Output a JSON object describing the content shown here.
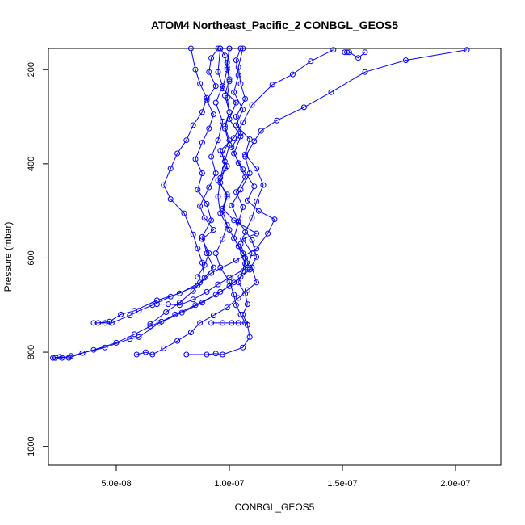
{
  "chart_data": {
    "type": "line",
    "title": "ATOM4 Northeast_Pacific_2 CONBGL_GEOS5",
    "xlabel": "CONBGL_GEOS5",
    "ylabel": "Pressure (mbar)",
    "xlim": [
      2e-08,
      2.2e-07
    ],
    "ylim": [
      1040,
      155
    ],
    "y_reversed": true,
    "grid": false,
    "line_color": "#0000ff",
    "marker": "open-circle",
    "x_ticks": [
      {
        "value": 5e-08,
        "label": "5.0e-08"
      },
      {
        "value": 1e-07,
        "label": "1.0e-07"
      },
      {
        "value": 1.5e-07,
        "label": "1.5e-07"
      },
      {
        "value": 2e-07,
        "label": "2.0e-07"
      }
    ],
    "y_ticks": [
      {
        "value": 200,
        "label": "200"
      },
      {
        "value": 400,
        "label": "400"
      },
      {
        "value": 600,
        "label": "600"
      },
      {
        "value": 800,
        "label": "800"
      },
      {
        "value": 1000,
        "label": "1000"
      }
    ],
    "series": [
      {
        "points": [
          [
            2.3e-08,
            812
          ],
          [
            2.6e-08,
            812
          ],
          [
            3e-08,
            808
          ],
          [
            4e-08,
            795
          ],
          [
            5e-08,
            780
          ],
          [
            5.8e-08,
            762
          ],
          [
            6.5e-08,
            745
          ],
          [
            7e-08,
            735
          ],
          [
            7.6e-08,
            720
          ],
          [
            8.5e-08,
            700
          ],
          [
            9.4e-08,
            678
          ],
          [
            1e-07,
            660
          ],
          [
            1.05e-07,
            640
          ],
          [
            1.07e-07,
            612
          ],
          [
            1.04e-07,
            575
          ],
          [
            1e-07,
            540
          ],
          [
            9.6e-08,
            505
          ],
          [
            9.5e-08,
            470
          ],
          [
            9.6e-08,
            430
          ],
          [
            9.8e-08,
            395
          ],
          [
            1e-07,
            360
          ],
          [
            9.8e-08,
            325
          ],
          [
            1e-07,
            290
          ],
          [
            9.8e-08,
            255
          ],
          [
            1e-07,
            220
          ],
          [
            9.9e-08,
            185
          ],
          [
            1e-07,
            155
          ]
        ]
      },
      {
        "points": [
          [
            2.2e-08,
            812
          ],
          [
            2.5e-08,
            810
          ],
          [
            2.9e-08,
            812
          ],
          [
            3.5e-08,
            802
          ],
          [
            4.5e-08,
            790
          ],
          [
            5.6e-08,
            772
          ],
          [
            6e-08,
            768
          ],
          [
            6.9e-08,
            738
          ],
          [
            7.9e-08,
            716
          ],
          [
            8.8e-08,
            695
          ],
          [
            9.6e-08,
            672
          ],
          [
            1.02e-07,
            652
          ],
          [
            1.09e-07,
            625
          ],
          [
            1.12e-07,
            598
          ],
          [
            1.1e-07,
            562
          ],
          [
            1.04e-07,
            522
          ],
          [
            1.01e-07,
            488
          ],
          [
            1.05e-07,
            455
          ],
          [
            1.09e-07,
            420
          ],
          [
            1.07e-07,
            385
          ],
          [
            1.11e-07,
            352
          ],
          [
            1.14e-07,
            330
          ],
          [
            1.21e-07,
            308
          ],
          [
            1.33e-07,
            280
          ],
          [
            1.45e-07,
            248
          ],
          [
            1.6e-07,
            205
          ],
          [
            1.78e-07,
            180
          ],
          [
            2.05e-07,
            158
          ]
        ]
      },
      {
        "points": [
          [
            4e-08,
            738
          ],
          [
            4.5e-08,
            738
          ],
          [
            4.8e-08,
            738
          ],
          [
            5.6e-08,
            722
          ],
          [
            6e-08,
            712
          ],
          [
            6.6e-08,
            700
          ],
          [
            7.4e-08,
            682
          ],
          [
            8.6e-08,
            658
          ],
          [
            9.2e-08,
            632
          ],
          [
            1.03e-07,
            605
          ],
          [
            1.12e-07,
            580
          ],
          [
            1.17e-07,
            548
          ],
          [
            1.2e-07,
            518
          ],
          [
            1.13e-07,
            500
          ],
          [
            1.08e-07,
            478
          ],
          [
            1.11e-07,
            448
          ],
          [
            1.06e-07,
            412
          ],
          [
            1.02e-07,
            378
          ],
          [
            1.05e-07,
            342
          ],
          [
            1e-07,
            305
          ],
          [
            1.03e-07,
            270
          ],
          [
            9.7e-08,
            240
          ],
          [
            9.9e-08,
            200
          ],
          [
            9.8e-08,
            170
          ],
          [
            9.6e-08,
            155
          ]
        ]
      },
      {
        "points": [
          [
            4.2e-08,
            738
          ],
          [
            4.7e-08,
            735
          ],
          [
            5.2e-08,
            720
          ],
          [
            5.8e-08,
            712
          ],
          [
            6.8e-08,
            690
          ],
          [
            7.8e-08,
            675
          ],
          [
            8.7e-08,
            652
          ],
          [
            9.3e-08,
            620
          ],
          [
            9e-08,
            590
          ],
          [
            8.8e-08,
            555
          ],
          [
            9.2e-08,
            520
          ],
          [
            9e-08,
            485
          ],
          [
            8.6e-08,
            455
          ],
          [
            8.8e-08,
            420
          ],
          [
            8.5e-08,
            390
          ],
          [
            8.8e-08,
            355
          ],
          [
            9.1e-08,
            325
          ],
          [
            9.3e-08,
            295
          ],
          [
            9e-08,
            265
          ],
          [
            9.4e-08,
            235
          ],
          [
            9.1e-08,
            205
          ],
          [
            9.2e-08,
            175
          ],
          [
            9.5e-08,
            155
          ]
        ]
      },
      {
        "points": [
          [
            5.9e-08,
            805
          ],
          [
            6.3e-08,
            800
          ],
          [
            6.6e-08,
            805
          ],
          [
            7.1e-08,
            792
          ],
          [
            7.7e-08,
            776
          ],
          [
            8.3e-08,
            758
          ],
          [
            8.7e-08,
            738
          ],
          [
            9.3e-08,
            722
          ],
          [
            9.9e-08,
            705
          ],
          [
            1.04e-07,
            685
          ],
          [
            1.08e-07,
            668
          ],
          [
            1.12e-07,
            652
          ],
          [
            1.1e-07,
            620
          ],
          [
            1.06e-07,
            590
          ],
          [
            1.02e-07,
            558
          ],
          [
            1.04e-07,
            525
          ],
          [
            1.06e-07,
            492
          ],
          [
            1.03e-07,
            460
          ],
          [
            1.07e-07,
            428
          ],
          [
            1.04e-07,
            398
          ],
          [
            1.01e-07,
            365
          ],
          [
            1.05e-07,
            335
          ],
          [
            1.03e-07,
            300
          ],
          [
            1.07e-07,
            262
          ],
          [
            1.05e-07,
            230
          ],
          [
            1.04e-07,
            195
          ],
          [
            1.06e-07,
            155
          ]
        ]
      },
      {
        "points": [
          [
            8.1e-08,
            805
          ],
          [
            9e-08,
            805
          ],
          [
            9.4e-08,
            803
          ],
          [
            9.7e-08,
            805
          ],
          [
            1.06e-07,
            790
          ],
          [
            1.09e-07,
            768
          ],
          [
            1.08e-07,
            742
          ],
          [
            1.06e-07,
            720
          ],
          [
            1.08e-07,
            698
          ],
          [
            1.07e-07,
            676
          ],
          [
            1.04e-07,
            652
          ],
          [
            1.06e-07,
            628
          ],
          [
            1.07e-07,
            600
          ],
          [
            1.05e-07,
            570
          ],
          [
            1.07e-07,
            545
          ],
          [
            1.1e-07,
            515
          ],
          [
            1.12e-07,
            480
          ],
          [
            1.15e-07,
            445
          ],
          [
            1.12e-07,
            410
          ],
          [
            1.07e-07,
            380
          ],
          [
            1.09e-07,
            348
          ],
          [
            1.03e-07,
            318
          ],
          [
            1.06e-07,
            285
          ],
          [
            1.02e-07,
            248
          ],
          [
            1.04e-07,
            212
          ],
          [
            1.03e-07,
            180
          ],
          [
            1.05e-07,
            155
          ]
        ]
      },
      {
        "points": [
          [
            9.2e-08,
            738
          ],
          [
            9.7e-08,
            738
          ],
          [
            1.01e-07,
            738
          ],
          [
            1.04e-07,
            738
          ],
          [
            1.07e-07,
            738
          ],
          [
            1.05e-07,
            720
          ],
          [
            1.03e-07,
            700
          ],
          [
            1.02e-07,
            678
          ],
          [
            1e-07,
            650
          ],
          [
            9.6e-08,
            620
          ],
          [
            9.4e-08,
            590
          ],
          [
            9.7e-08,
            560
          ],
          [
            9.9e-08,
            530
          ],
          [
            9.7e-08,
            500
          ],
          [
            9.9e-08,
            470
          ],
          [
            9.6e-08,
            440
          ],
          [
            9.8e-08,
            410
          ],
          [
            9.7e-08,
            380
          ],
          [
            1e-07,
            350
          ],
          [
            9.8e-08,
            320
          ],
          [
            1e-07,
            290
          ],
          [
            9.9e-08,
            260
          ],
          [
            1e-07,
            225
          ],
          [
            9.9e-08,
            195
          ],
          [
            1e-07,
            155
          ]
        ]
      },
      {
        "points": [
          [
            6.5e-08,
            740
          ],
          [
            7.2e-08,
            715
          ],
          [
            7.8e-08,
            695
          ],
          [
            8.4e-08,
            670
          ],
          [
            8.9e-08,
            642
          ],
          [
            8.8e-08,
            610
          ],
          [
            8.6e-08,
            580
          ],
          [
            8.4e-08,
            550
          ],
          [
            8e-08,
            505
          ],
          [
            7.4e-08,
            475
          ],
          [
            7.1e-08,
            445
          ],
          [
            7.4e-08,
            410
          ],
          [
            7.7e-08,
            378
          ],
          [
            8.1e-08,
            350
          ],
          [
            8.4e-08,
            318
          ],
          [
            8.8e-08,
            290
          ],
          [
            9e-08,
            260
          ],
          [
            8.7e-08,
            230
          ],
          [
            8.5e-08,
            200
          ],
          [
            8.3e-08,
            155
          ]
        ]
      },
      {
        "points": [
          [
            6.8e-08,
            698
          ],
          [
            7.3e-08,
            698
          ],
          [
            7.8e-08,
            700
          ],
          [
            8.4e-08,
            688
          ],
          [
            9e-08,
            672
          ],
          [
            9.5e-08,
            656
          ],
          [
            1e-07,
            642
          ],
          [
            1.08e-07,
            620
          ],
          [
            1.1e-07,
            590
          ],
          [
            1.06e-07,
            560
          ],
          [
            1.12e-07,
            548
          ],
          [
            1.02e-07,
            520
          ],
          [
            9.7e-08,
            495
          ],
          [
            9.9e-08,
            465
          ],
          [
            9.5e-08,
            435
          ],
          [
            9.9e-08,
            405
          ],
          [
            9.6e-08,
            372
          ],
          [
            1.02e-07,
            345
          ],
          [
            1.06e-07,
            312
          ],
          [
            1.1e-07,
            275
          ],
          [
            1.19e-07,
            232
          ],
          [
            1.28e-07,
            210
          ],
          [
            1.36e-07,
            182
          ],
          [
            1.46e-07,
            158
          ]
        ]
      },
      {
        "points": [
          [
            8.6e-08,
            640
          ],
          [
            8.9e-08,
            615
          ],
          [
            9.1e-08,
            590
          ],
          [
            8.8e-08,
            560
          ],
          [
            9.3e-08,
            540
          ],
          [
            8.9e-08,
            515
          ],
          [
            8.7e-08,
            490
          ],
          [
            9.1e-08,
            450
          ],
          [
            9.4e-08,
            420
          ],
          [
            9.2e-08,
            385
          ],
          [
            9.5e-08,
            350
          ],
          [
            9.7e-08,
            310
          ],
          [
            9.4e-08,
            270
          ],
          [
            9.7e-08,
            235
          ],
          [
            9.5e-08,
            205
          ],
          [
            9.6e-08,
            155
          ]
        ]
      },
      {
        "points": [
          [
            1.51e-07,
            163
          ],
          [
            1.52e-07,
            163
          ],
          [
            1.53e-07,
            163
          ],
          [
            1.57e-07,
            175
          ],
          [
            1.6e-07,
            163
          ]
        ]
      }
    ]
  }
}
